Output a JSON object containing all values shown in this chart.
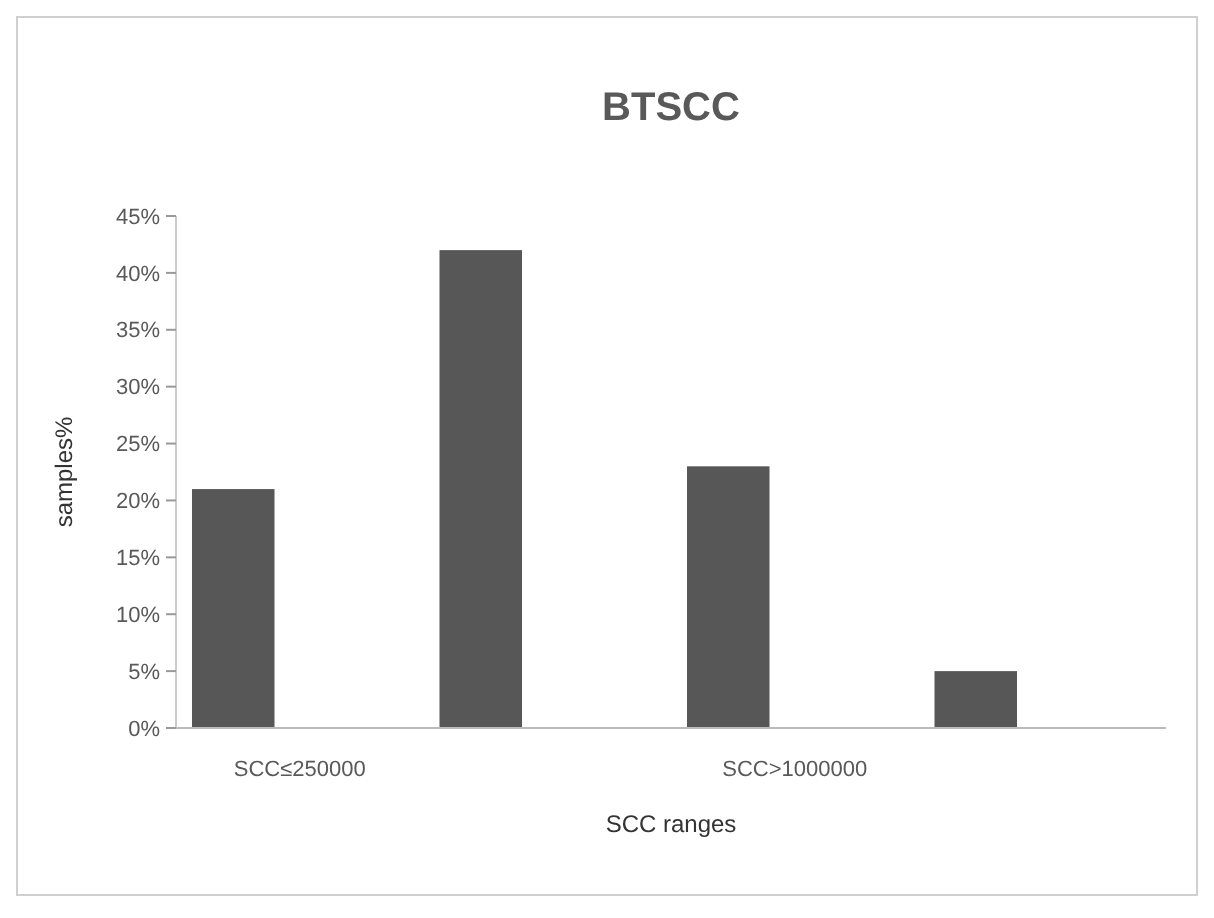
{
  "chart_data": {
    "type": "bar",
    "title": "BTSCC",
    "xlabel": "SCC ranges",
    "ylabel": "samples%",
    "categories": [
      "SCC≤250000",
      null,
      "SCC>1000000",
      null
    ],
    "values": [
      21,
      42,
      23,
      5
    ],
    "color": "#575757",
    "ylim": [
      0,
      45
    ],
    "yticks": [
      {
        "value": 0,
        "label": "0%"
      },
      {
        "value": 5,
        "label": "5%"
      },
      {
        "value": 10,
        "label": "10%"
      },
      {
        "value": 15,
        "label": "15%"
      },
      {
        "value": 20,
        "label": "20%"
      },
      {
        "value": 25,
        "label": "25%"
      },
      {
        "value": 30,
        "label": "30%"
      },
      {
        "value": 35,
        "label": "35%"
      },
      {
        "value": 40,
        "label": "40%"
      },
      {
        "value": 45,
        "label": "45%"
      }
    ],
    "grid": false
  }
}
